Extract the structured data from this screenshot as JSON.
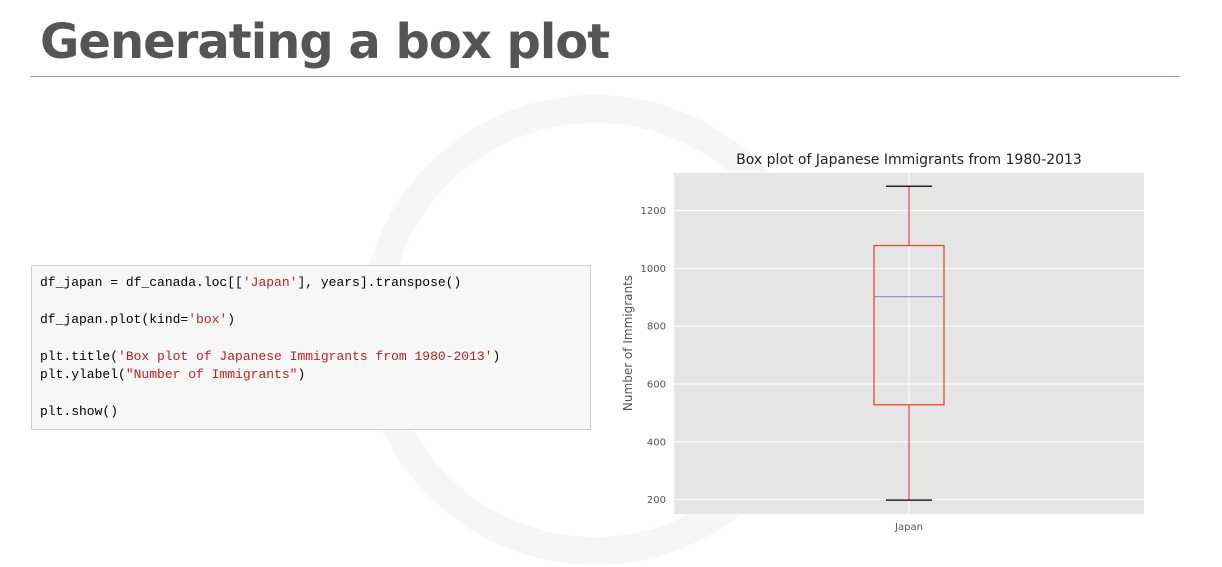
{
  "slide": {
    "title": "Generating a box plot"
  },
  "code": {
    "lines": [
      [
        "df_japan = df_canada.loc[[",
        "'Japan'",
        "], years].transpose()"
      ],
      [
        "df_japan.plot(kind=",
        "'box'",
        ")"
      ],
      [
        "plt.title(",
        "'Box plot of Japanese Immigrants from 1980-2013'",
        ")"
      ],
      [
        "plt.ylabel(",
        "\"Number of Immigrants\"",
        ")"
      ],
      [
        "plt.show()",
        "",
        ""
      ]
    ]
  },
  "chart_data": {
    "type": "box",
    "title": "Box plot of Japanese Immigrants from 1980-2013",
    "xlabel": "",
    "ylabel": "Number of Immigrants",
    "categories": [
      "Japan"
    ],
    "box": {
      "min": 198,
      "q1": 528,
      "median": 902,
      "q3": 1079,
      "max": 1284
    },
    "ylim": [
      150,
      1330
    ],
    "yticks": [
      200,
      400,
      600,
      800,
      1000,
      1200
    ],
    "grid": true,
    "colors": {
      "box": "#e24a33",
      "median": "#8a8ad8",
      "background": "#e5e5e5",
      "grid": "#ffffff"
    }
  }
}
